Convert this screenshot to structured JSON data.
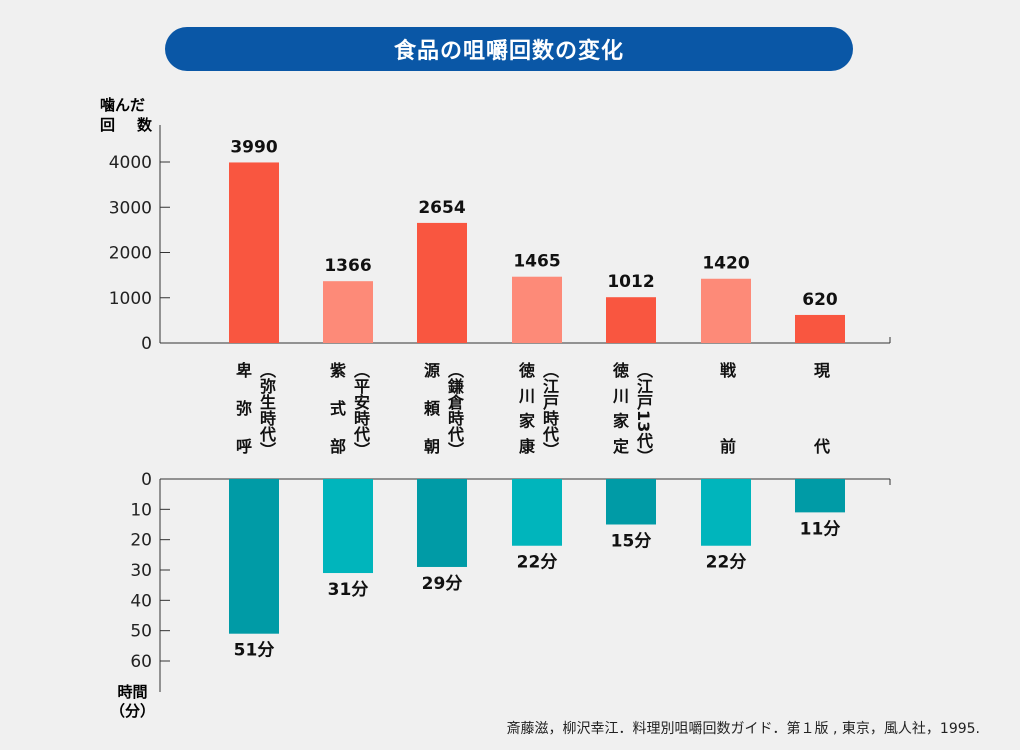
{
  "title": "食品の咀嚼回数の変化",
  "source": "斎藤滋，柳沢幸江．料理別咀嚼回数ガイド．第１版 , 東京，風人社，1995.",
  "categories": [
    {
      "name": "卑弥呼",
      "era": "（弥生時代）"
    },
    {
      "name": "紫式部",
      "era": "（平安時代）"
    },
    {
      "name": "源頼朝",
      "era": "（鎌倉時代）"
    },
    {
      "name": "徳川家康",
      "era": "（江戸時代）"
    },
    {
      "name": "徳川家定",
      "era": "（江戸13代）"
    },
    {
      "name": "戦前",
      "era": ""
    },
    {
      "name": "現代",
      "era": ""
    }
  ],
  "chart_data": [
    {
      "type": "bar",
      "ylabel_line1": "噛んだ",
      "ylabel_line2": [
        "回",
        "数"
      ],
      "ylim": [
        0,
        4000
      ],
      "yticks": [
        "0",
        "1000",
        "2000",
        "3000",
        "4000"
      ],
      "values": [
        3990,
        1366,
        2654,
        1465,
        1012,
        1420,
        620
      ],
      "value_labels": [
        "3990",
        "1366",
        "2654",
        "1465",
        "1012",
        "1420",
        "620"
      ],
      "colors": [
        "#f95640",
        "#fd8a78",
        "#f95640",
        "#fd8a78",
        "#f95640",
        "#fd8a78",
        "#f95640"
      ]
    },
    {
      "type": "bar",
      "ylabel_line1": "時間",
      "ylabel_line2": "（分）",
      "ylim": [
        0,
        60
      ],
      "inverted": true,
      "yticks": [
        "0",
        "10",
        "20",
        "30",
        "40",
        "50",
        "60"
      ],
      "values": [
        51,
        31,
        29,
        22,
        15,
        22,
        11
      ],
      "value_labels": [
        "51分",
        "31分",
        "29分",
        "22分",
        "15分",
        "22分",
        "11分"
      ],
      "colors": [
        "#009ba6",
        "#00b5bc",
        "#009ba6",
        "#00b5bc",
        "#009ba6",
        "#00b5bc",
        "#009ba6"
      ]
    }
  ]
}
